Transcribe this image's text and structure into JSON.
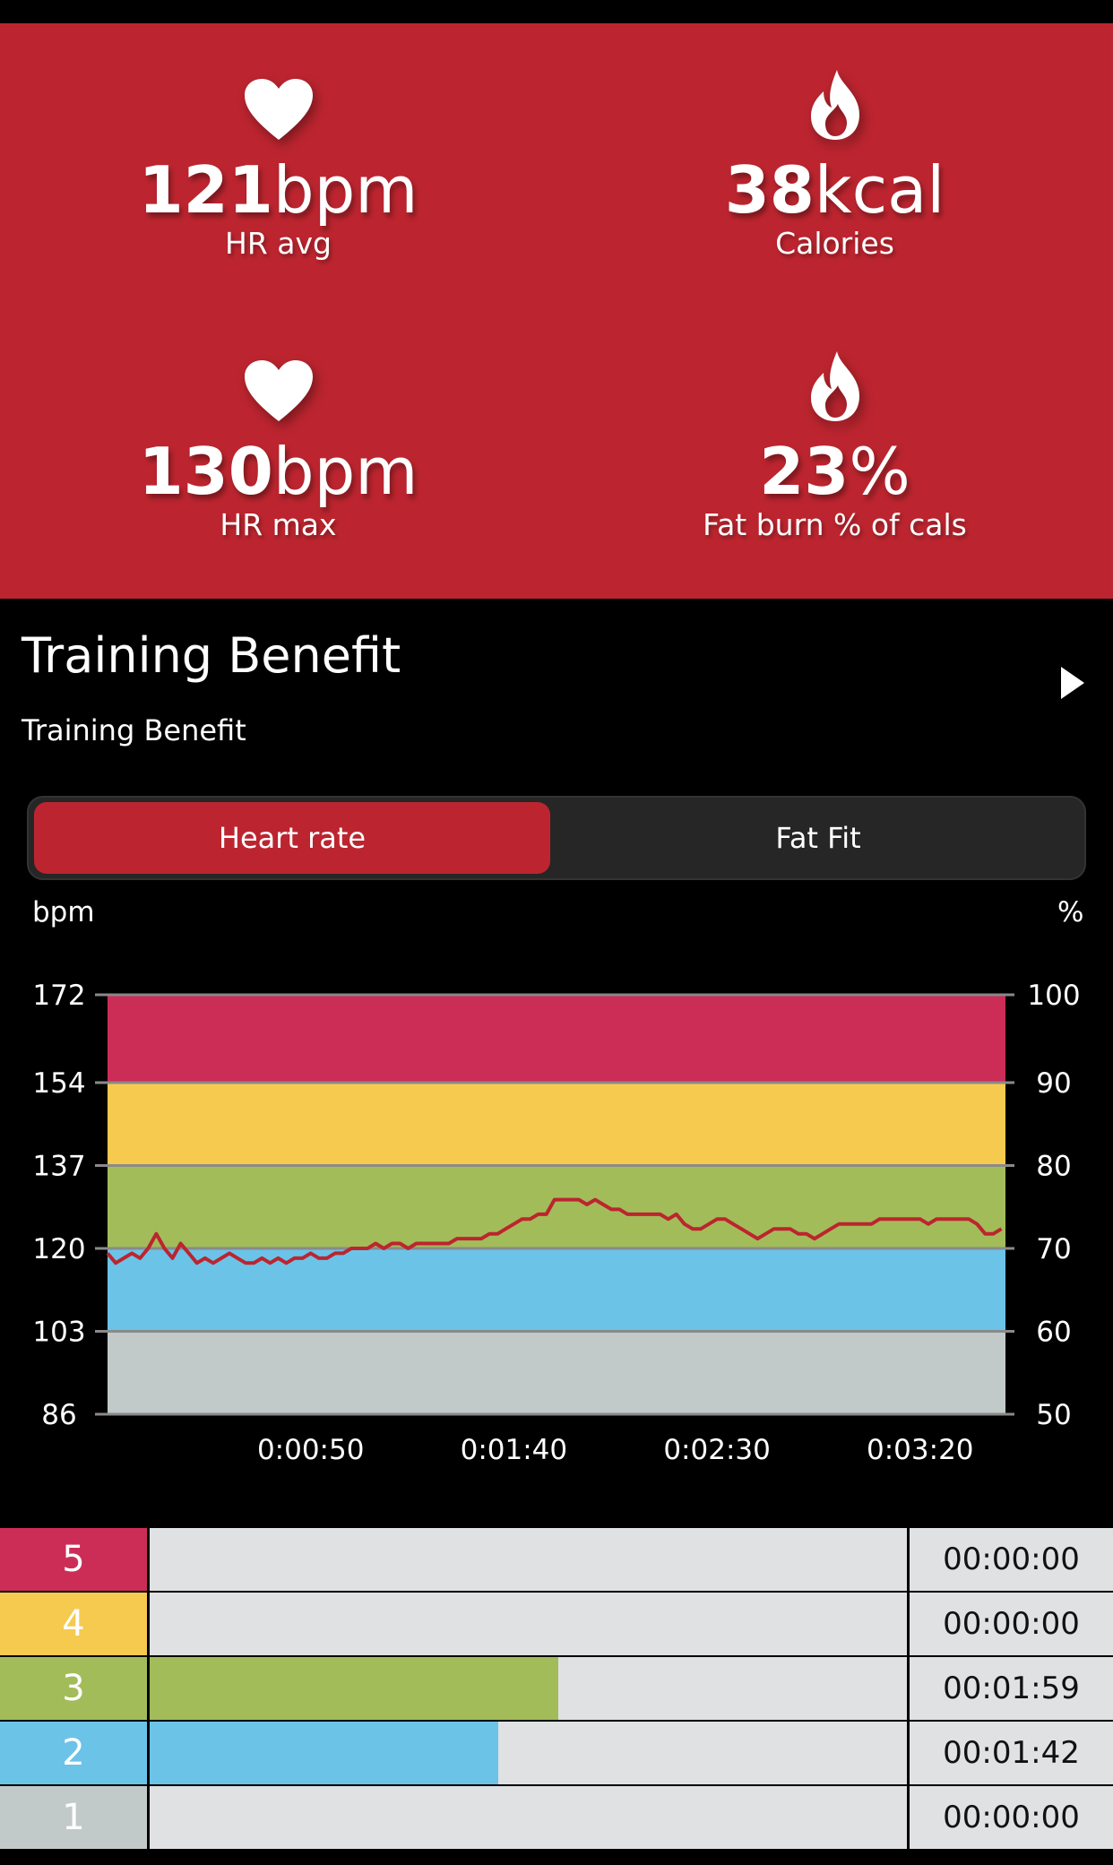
{
  "stats": [
    {
      "icon": "heart-icon",
      "number": "121",
      "unit": "bpm",
      "label": "HR avg"
    },
    {
      "icon": "flame-icon",
      "number": "38",
      "unit": "kcal",
      "label": "Calories"
    },
    {
      "icon": "heart-icon",
      "number": "130",
      "unit": "bpm",
      "label": "HR max"
    },
    {
      "icon": "flame-icon",
      "number": "23",
      "unit": "%",
      "label": "Fat burn % of cals"
    }
  ],
  "section": {
    "title": "Training Benefit",
    "subtitle": "Training Benefit"
  },
  "toggle": {
    "active": "Heart rate",
    "inactive": "Fat Fit"
  },
  "colors": {
    "accent": "#bc252f",
    "zone5": "#cc2d57",
    "zone4": "#f6c94f",
    "zone3": "#a3bc5a",
    "zone2": "#6bc3e8",
    "zone1": "#c2cac9",
    "line": "#bc252f"
  },
  "chart_data": {
    "type": "line",
    "left_axis_label": "bpm",
    "right_axis_label": "%",
    "y_ticks_left": [
      "172",
      "154",
      "137",
      "120",
      "103",
      "86"
    ],
    "y_ticks_right": [
      "100",
      "90",
      "80",
      "70",
      "60",
      "50"
    ],
    "ylim": [
      86,
      172
    ],
    "x_ticks": [
      "0:00:50",
      "0:01:40",
      "0:02:30",
      "0:03:20"
    ],
    "x_tick_seconds": [
      50,
      100,
      150,
      200
    ],
    "xlim": [
      0,
      221
    ],
    "zone_bounds": [
      86,
      103,
      120,
      137,
      154,
      172
    ],
    "series": [
      {
        "x": [
          0,
          2,
          4,
          6,
          8,
          10,
          12,
          14,
          16,
          18,
          20,
          22,
          24,
          26,
          28,
          30,
          32,
          34,
          36,
          38,
          40,
          42,
          44,
          46,
          48,
          50,
          52,
          54,
          56,
          58,
          60,
          62,
          64,
          66,
          68,
          70,
          72,
          74,
          76,
          78,
          80,
          82,
          84,
          86,
          88,
          90,
          92,
          94,
          96,
          98,
          100,
          102,
          104,
          106,
          108,
          110,
          112,
          114,
          116,
          118,
          120,
          122,
          124,
          126,
          128,
          130,
          132,
          134,
          136,
          138,
          140,
          142,
          144,
          146,
          148,
          150,
          152,
          154,
          156,
          158,
          160,
          162,
          164,
          166,
          168,
          170,
          172,
          174,
          176,
          178,
          180,
          182,
          184,
          186,
          188,
          190,
          192,
          194,
          196,
          198,
          200,
          202,
          204,
          206,
          208,
          210,
          212,
          214,
          216,
          218,
          220
        ],
        "values": [
          119,
          117,
          118,
          119,
          118,
          120,
          123,
          120,
          118,
          121,
          119,
          117,
          118,
          117,
          118,
          119,
          118,
          117,
          117,
          118,
          117,
          118,
          117,
          118,
          118,
          119,
          118,
          118,
          119,
          119,
          120,
          120,
          120,
          121,
          120,
          121,
          121,
          120,
          121,
          121,
          121,
          121,
          121,
          122,
          122,
          122,
          122,
          123,
          123,
          124,
          125,
          126,
          126,
          127,
          127,
          130,
          130,
          130,
          130,
          129,
          130,
          129,
          128,
          128,
          127,
          127,
          127,
          127,
          127,
          126,
          127,
          125,
          124,
          124,
          125,
          126,
          126,
          125,
          124,
          123,
          122,
          123,
          124,
          124,
          124,
          123,
          123,
          122,
          123,
          124,
          125,
          125,
          125,
          125,
          125,
          126,
          126,
          126,
          126,
          126,
          126,
          125,
          126,
          126,
          126,
          126,
          126,
          125,
          123,
          123,
          124
        ]
      }
    ]
  },
  "zone_table": [
    {
      "zone": "5",
      "time": "00:00:00",
      "fraction": 0
    },
    {
      "zone": "4",
      "time": "00:00:00",
      "fraction": 0
    },
    {
      "zone": "3",
      "time": "00:01:59",
      "fraction": 0.54
    },
    {
      "zone": "2",
      "time": "00:01:42",
      "fraction": 0.46
    },
    {
      "zone": "1",
      "time": "00:00:00",
      "fraction": 0
    }
  ]
}
